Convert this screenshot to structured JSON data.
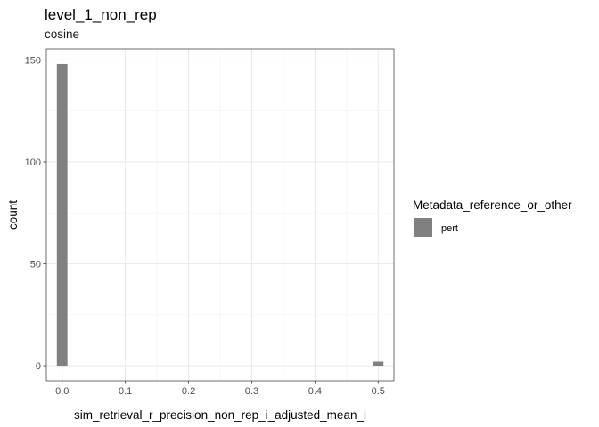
{
  "chart_data": {
    "type": "bar",
    "title": "level_1_non_rep",
    "subtitle": "cosine",
    "xlabel": "sim_retrieval_r_precision_non_rep_i_adjusted_mean_i",
    "ylabel": "count",
    "xlim": [
      -0.025,
      0.525
    ],
    "ylim": [
      -7.4,
      155.4
    ],
    "x_ticks": [
      0.0,
      0.1,
      0.2,
      0.3,
      0.4,
      0.5
    ],
    "x_tick_labels": [
      "0.0",
      "0.1",
      "0.2",
      "0.3",
      "0.4",
      "0.5"
    ],
    "y_ticks": [
      0,
      50,
      100,
      150
    ],
    "y_tick_labels": [
      "0",
      "50",
      "100",
      "150"
    ],
    "bin_width": 0.0167,
    "series": [
      {
        "name": "pert",
        "color": "#808080",
        "bins": [
          {
            "x": 0.0,
            "count": 148
          },
          {
            "x": 0.5,
            "count": 2
          }
        ]
      }
    ],
    "legend": {
      "title": "Metadata_reference_or_other",
      "position": "right",
      "items": [
        {
          "label": "pert",
          "color": "#808080"
        }
      ]
    },
    "grid": true,
    "theme": "bw"
  }
}
